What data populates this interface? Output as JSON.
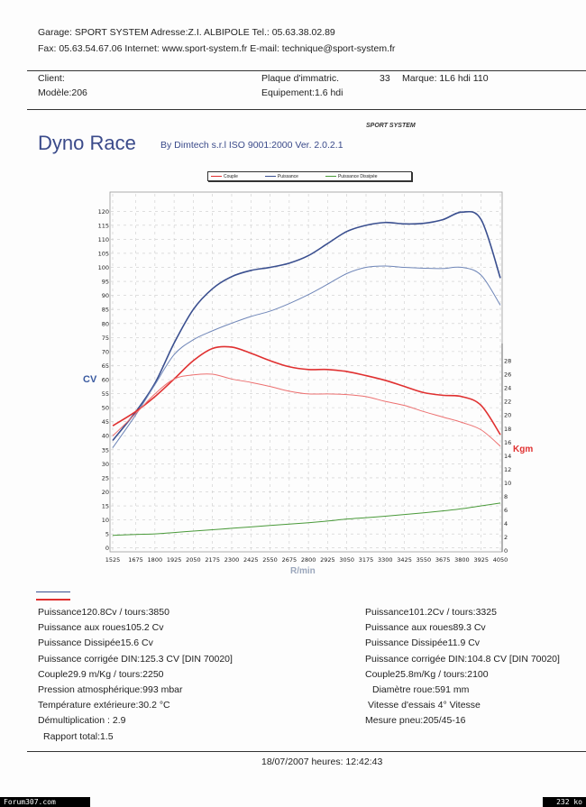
{
  "header": {
    "line1": "Garage: SPORT SYSTEM   Adresse:Z.I. ALBIPOLE   Tel.: 05.63.38.02.89",
    "line2": "Fax: 05.63.54.67.06   Internet: www.sport-system.fr   E-mail: technique@sport-system.fr"
  },
  "vehicle": {
    "client": "Client:",
    "modele": "Modèle:206",
    "plaque": "Plaque d'immatric.",
    "plaque_value": "33",
    "marque": "Marque: 1L6 hdi 110",
    "equipement": "Equipement:1.6 hdi"
  },
  "brand": {
    "logo": "SPORT SYSTEM",
    "title": "Dyno Race",
    "subtitle": "By Dimtech s.r.l  ISO 9001:2000  Ver. 2.0.2.1"
  },
  "colors": {
    "couple": "#e03030",
    "puissance": "#3a4f8f",
    "puissance_dissipee": "#4a9a3a"
  },
  "chart_data": {
    "type": "line",
    "xlabel": "R/min",
    "ylabel": "CV",
    "y2label": "Kgm",
    "x_ticks": [
      1525,
      1675,
      1800,
      1925,
      2050,
      2175,
      2300,
      2425,
      2550,
      2675,
      2800,
      2925,
      3050,
      3175,
      3300,
      3425,
      3550,
      3675,
      3800,
      3925,
      4050
    ],
    "y_ticks": [
      0,
      5,
      10,
      15,
      20,
      25,
      30,
      35,
      40,
      45,
      50,
      55,
      60,
      65,
      70,
      75,
      80,
      85,
      90,
      95,
      100,
      105,
      110,
      115,
      120
    ],
    "y2_ticks": [
      0,
      2,
      4,
      6,
      8,
      10,
      12,
      14,
      16,
      18,
      20,
      22,
      24,
      26,
      28
    ],
    "xlim": [
      1525,
      4050
    ],
    "ylim": [
      0,
      120
    ],
    "y2lim": [
      0,
      28
    ],
    "grid": true,
    "legend": {
      "position": "top",
      "entries": [
        "Couple",
        "Puissance",
        "Puissance Dissipée"
      ]
    },
    "x": [
      1525,
      1675,
      1800,
      1925,
      2050,
      2175,
      2300,
      2425,
      2550,
      2675,
      2800,
      2925,
      3050,
      3175,
      3300,
      3425,
      3550,
      3675,
      3800,
      3925,
      4050
    ],
    "series": [
      {
        "name": "Puissance",
        "axis": "CV",
        "color": "#3a4f8f",
        "values": [
          38.3,
          48.5,
          58.7,
          73,
          85,
          92.4,
          96.7,
          98.9,
          100,
          101.5,
          104.2,
          108.5,
          112.8,
          115,
          116,
          115.5,
          115.7,
          117,
          119.7,
          117,
          96.2
        ]
      },
      {
        "name": "Puissance",
        "axis": "CV",
        "color": "#6f86b8",
        "values": [
          35.7,
          47.4,
          58.2,
          68.9,
          74.2,
          77.4,
          80.1,
          82.5,
          84.4,
          87.1,
          90.3,
          94,
          97.8,
          100,
          100.5,
          100,
          99.7,
          99.6,
          100,
          97.2,
          86.5
        ]
      },
      {
        "name": "Couple",
        "axis": "Kgm",
        "color": "#e03030",
        "values": [
          18.4,
          20.5,
          22.7,
          25.3,
          28,
          29.8,
          30,
          29.1,
          28,
          27.1,
          26.7,
          26.7,
          26.4,
          25.8,
          25.1,
          24.2,
          23.3,
          22.9,
          22.7,
          21.4,
          17.1
        ]
      },
      {
        "name": "Couple",
        "axis": "Kgm",
        "color": "#ec7070",
        "values": [
          16.9,
          20.2,
          23.1,
          25.3,
          25.9,
          26,
          25.3,
          24.8,
          24.2,
          23.5,
          23.1,
          23.1,
          23,
          22.7,
          22,
          21.4,
          20.5,
          19.7,
          18.9,
          17.8,
          15.4
        ]
      },
      {
        "name": "Puissance Dissipée",
        "axis": "CV",
        "color": "#4a9a3a",
        "values": [
          4.5,
          4.8,
          5,
          5.5,
          6,
          6.5,
          7,
          7.5,
          8,
          8.5,
          9,
          9.6,
          10.3,
          10.8,
          11.3,
          11.9,
          12.5,
          13.2,
          14,
          15,
          16
        ]
      }
    ]
  },
  "results": {
    "left": [
      "Puissance120.8Cv / tours:3850",
      "Puissance aux roues105.2 Cv",
      "Puissance Dissipée15.6 Cv",
      "Puissance corrigée DIN:125.3 CV  [DIN 70020]",
      "Couple29.9 m/Kg / tours:2250",
      "Pression atmosphérique:993 mbar",
      "Température extérieure:30.2 °C",
      "Démultiplication : 2.9",
      "Rapport total:1.5"
    ],
    "right": [
      "Puissance101.2Cv / tours:3325",
      "Puissance aux roues89.3 Cv",
      "Puissance Dissipée11.9 Cv",
      "Puissance corrigée DIN:104.8 CV  [DIN 70020]",
      "Couple25.8m/Kg / tours:2100",
      "Diamètre roue:591 mm",
      "Vitesse d'essais 4° Vitesse",
      "Mesure pneu:205/45-16"
    ]
  },
  "datetime": "18/07/2007 heures: 12:42:43",
  "watermark": {
    "left": "Forum307.com",
    "right": "232 ko"
  }
}
